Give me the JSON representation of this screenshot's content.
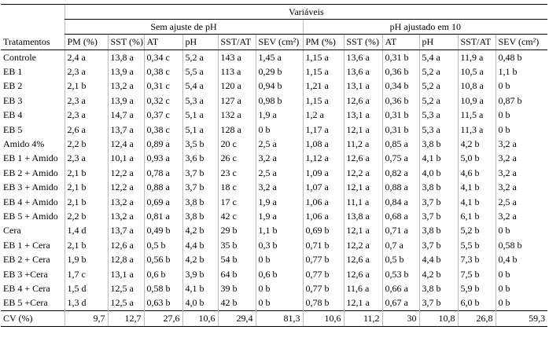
{
  "header": {
    "top": "Variáveis",
    "groups": [
      "Sem ajuste de  pH",
      "pH  ajustado em 10"
    ],
    "columns": [
      "Tratamentos",
      "PM (%)",
      "SST (%)",
      "AT",
      "pH",
      "SST/AT",
      "SEV (cm²)",
      "PM (%)",
      "SST (%)",
      "AT",
      "pH",
      "SST/AT",
      "SEV (cm²)"
    ]
  },
  "table": {
    "rows": [
      [
        "Controle",
        "2,4 a",
        "13,8 a",
        "0,34 c",
        "5,2 a",
        "143 a",
        "1,45 a",
        "1,15 a",
        "13,6 a",
        "0,31 b",
        "5,4 a",
        "11,9 a",
        "0,48 b"
      ],
      [
        "EB 1",
        "2,3 a",
        "13,9 a",
        "0,38 c",
        "5,5 a",
        "113 a",
        "0,29 b",
        "1,15 a",
        "13,6 a",
        "0,36 b",
        "5,2 a",
        "10,5 a",
        "1,1 b"
      ],
      [
        "EB 2",
        "2,1 b",
        "13,2 a",
        "0,31 c",
        "5,4 a",
        "120 a",
        "0,94 b",
        "1,21 a",
        "13,1 a",
        "0,34 b",
        "5,2 a",
        "10,8 a",
        "0 b"
      ],
      [
        "EB 3",
        "2,3 a",
        "13,9 a",
        "0,32 c",
        "5,3 a",
        "127 a",
        "0,98 b",
        "1,15 a",
        "12,6 a",
        "0,36 b",
        "5,2 a",
        "10,9 a",
        "0,87 b"
      ],
      [
        "EB 4",
        "2,3 a",
        "14,7 a",
        "0,37 c",
        "5,1 a",
        "132 a",
        "1,9 a",
        "1,2 a",
        "13,1 a",
        "0,31 b",
        "5,3 a",
        "11,5 a",
        "0 b"
      ],
      [
        "EB 5",
        "2,6 a",
        "13,7 a",
        "0,38 c",
        "5,1 a",
        "128 a",
        "0 b",
        "1,17 a",
        "12,1 a",
        "0,31 b",
        "5,3 a",
        "11,3 a",
        "0 b"
      ],
      [
        "Amido 4%",
        "2,2 b",
        "12,4 a",
        "0,89 a",
        "3,5 b",
        "20 c",
        "2,5 a",
        "1,08 a",
        "11,2 a",
        "0,85 a",
        "3,8 b",
        "4,2 b",
        "3,2 a"
      ],
      [
        "EB 1 + Amido",
        "2,3 a",
        "10,1 a",
        "0,93 a",
        "3,6 b",
        "26 c",
        "3,2 a",
        "1,12 a",
        "12,6 a",
        "0,75 a",
        "4,1 b",
        "5,0 b",
        "3,2 a"
      ],
      [
        "EB 2 + Amido",
        "2,1 b",
        "12,2 a",
        "0,78 a",
        "3,7 b",
        "23 c",
        "2,5 a",
        "1,09 a",
        "12,2 a",
        "0,82 a",
        "4,0 b",
        "4,6 b",
        "3,2 a"
      ],
      [
        "EB 3 + Amido",
        "2,1 b",
        "12,2 a",
        "0,88 a",
        "3,7 b",
        "18 c",
        "3,2 a",
        "1,07 a",
        "12,1 a",
        "0,88 a",
        "3,8 b",
        "4,1 b",
        "3,2 a"
      ],
      [
        "EB 4 + Amido",
        "2,1 b",
        "13,2 a",
        "0,69 a",
        "3,8 b",
        "17 c",
        "1,9 a",
        "1,06 a",
        "11,1 a",
        "0,84 a",
        "3,7 b",
        "4,1 b",
        "2,5 a"
      ],
      [
        "EB 5 + Amido",
        "2,2 b",
        "13,2 a",
        "0,81 a",
        "3,8 b",
        "42 c",
        "1,9 a",
        "1,06 a",
        "13,8 a",
        "0,68 a",
        "3,7 b",
        "6,1 b",
        "3,2 a"
      ],
      [
        "Cera",
        "1,4 d",
        "13,7 a",
        "0,49 b",
        "4,2 b",
        "29 b",
        "1,1 b",
        "0,69 b",
        "12,1 a",
        "0,71 a",
        "3,8 b",
        "5,2 b",
        "0 b"
      ],
      [
        "EB 1 + Cera",
        "2,1 b",
        "12,6 a",
        "0,5 b",
        "4,4 b",
        "35 b",
        "0,3 b",
        "0,71 b",
        "12,2 a",
        "0,7 a",
        "3,7 b",
        "5,5 b",
        "0,58 b"
      ],
      [
        "EB 2 + Cera",
        "1,9 b",
        "12,8 a",
        "0,56 b",
        "4,2 b",
        "54 b",
        "0 b",
        "0,77 b",
        "12,6 a",
        "0,5 b",
        "4,4 b",
        "7,3 b",
        "0,4 b"
      ],
      [
        "EB 3 +Cera",
        "1,7 c",
        "13,1 a",
        "0,6 b",
        "3,9 b",
        "64 b",
        "0,6 b",
        "0,77 b",
        "12,6 a",
        "0,53 b",
        "4,2 b",
        "7,5 b",
        "0 b"
      ],
      [
        "EB 4 + Cera",
        "1,5 d",
        "12,5 a",
        "0,58 b",
        "4,1 b",
        "39 b",
        "0 b",
        "0,77 b",
        "11,6 a",
        "0,66 a",
        "3,8 b",
        "5,9 b",
        "0 b"
      ],
      [
        "EB 5 +Cera",
        "1,3 d",
        "12,5 a",
        "0,63 b",
        "4,0 b",
        "42 b",
        "0 b",
        "0,78 b",
        "12,1 a",
        "0,67 a",
        "3,7 b",
        "6,0 b",
        "0 b"
      ]
    ],
    "footer": [
      "CV (%)",
      "9,7",
      "12,7",
      "27,6",
      "10,6",
      "29,4",
      "81,3",
      "10,6",
      "11,2",
      "30",
      "10,8",
      "26,8",
      "59,3"
    ]
  }
}
